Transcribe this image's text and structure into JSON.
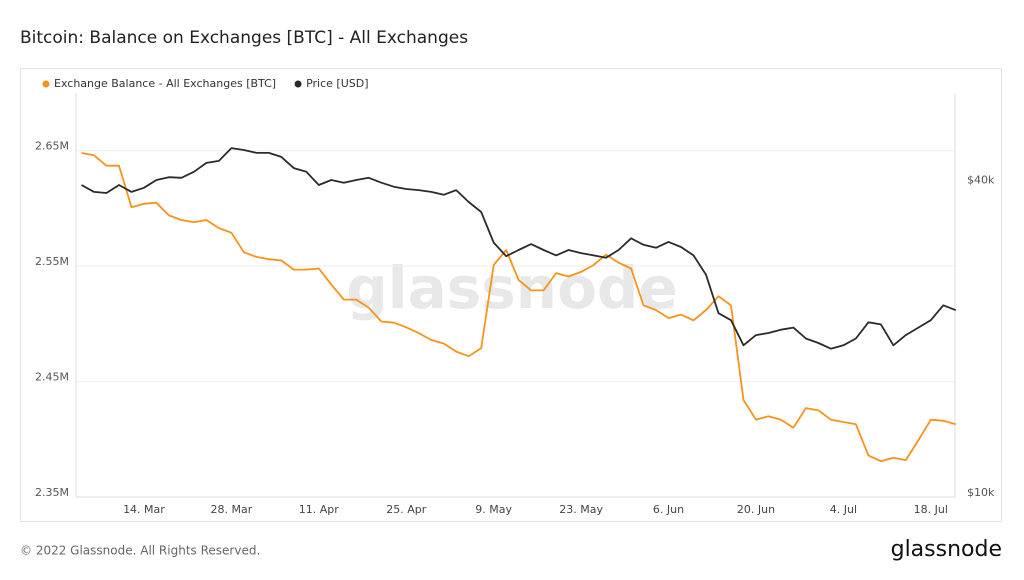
{
  "chart_data": {
    "type": "line",
    "title": "Bitcoin: Balance on Exchanges [BTC] - All Exchanges",
    "watermark": "glassnode",
    "footer": "© 2022 Glassnode. All Rights Reserved.",
    "logo": "glassnode",
    "categories": [
      null,
      null,
      null,
      null,
      null,
      "14. Mar",
      null,
      null,
      null,
      null,
      null,
      null,
      "28. Mar",
      null,
      null,
      null,
      null,
      null,
      null,
      "11. Apr",
      null,
      null,
      null,
      null,
      null,
      null,
      "25. Apr",
      null,
      null,
      null,
      null,
      null,
      null,
      "9. May",
      null,
      null,
      null,
      null,
      null,
      null,
      "23. May",
      null,
      null,
      null,
      null,
      null,
      null,
      "6. Jun",
      null,
      null,
      null,
      null,
      null,
      null,
      "20. Jun",
      null,
      null,
      null,
      null,
      null,
      null,
      "4. Jul",
      null,
      null,
      null,
      null,
      null,
      null,
      "18. Jul",
      null,
      null
    ],
    "series": [
      {
        "name": "Exchange Balance - All Exchanges [BTC]",
        "color": "#f7931a",
        "values": [
          2648000,
          2646000,
          2637000,
          2637000,
          2601000,
          2604000,
          2605000,
          2594000,
          2590000,
          2588000,
          2590000,
          2583000,
          2579000,
          2562000,
          2558000,
          2556000,
          2555000,
          2547000,
          2547000,
          2548000,
          2534000,
          2521000,
          2521000,
          2514000,
          2502000,
          2501000,
          2497000,
          2492000,
          2486000,
          2483000,
          2476000,
          2472000,
          2479000,
          2551000,
          2564000,
          2538000,
          2529000,
          2529000,
          2544000,
          2541000,
          2545000,
          2551000,
          2560000,
          2553000,
          2548000,
          2516000,
          2512000,
          2505000,
          2508000,
          2503000,
          2512000,
          2524000,
          2516000,
          2434000,
          2417000,
          2420000,
          2417000,
          2410000,
          2427000,
          2425000,
          2417000,
          2415000,
          2413000,
          2386000,
          2381000,
          2384000,
          2382000,
          2399000,
          2417000,
          2416000,
          2413000
        ]
      },
      {
        "name": "Price [USD]",
        "color": "#2b2b2b",
        "axis": "y2",
        "values": [
          39900,
          38700,
          38500,
          39900,
          38700,
          39400,
          40800,
          41300,
          41200,
          42300,
          44000,
          44400,
          47000,
          46600,
          46000,
          46000,
          45200,
          43000,
          42300,
          39900,
          40800,
          40300,
          40800,
          41200,
          40300,
          39600,
          39200,
          39000,
          38700,
          38200,
          39000,
          37000,
          35400,
          30900,
          29100,
          29900,
          30700,
          29900,
          29200,
          29900,
          29500,
          29200,
          28900,
          29900,
          31500,
          30600,
          30200,
          31000,
          30300,
          29200,
          26800,
          22600,
          21900,
          19600,
          20500,
          20700,
          21000,
          21200,
          20200,
          19800,
          19300,
          19600,
          20200,
          21700,
          21500,
          19600,
          20500,
          21200,
          21900,
          23400,
          22900
        ]
      }
    ],
    "ylim": [
      2350000,
      2700000
    ],
    "yticks": [
      {
        "value": 2350000,
        "label": "2.35M"
      },
      {
        "value": 2450000,
        "label": "2.45M"
      },
      {
        "value": 2550000,
        "label": "2.55M"
      },
      {
        "value": 2650000,
        "label": "2.65M"
      }
    ],
    "y2lim": [
      10000,
      60000
    ],
    "y2log": true,
    "y2ticks": [
      {
        "value": 10000,
        "label": "$10k"
      },
      {
        "value": 40000,
        "label": "$40k"
      }
    ],
    "grid": true
  }
}
